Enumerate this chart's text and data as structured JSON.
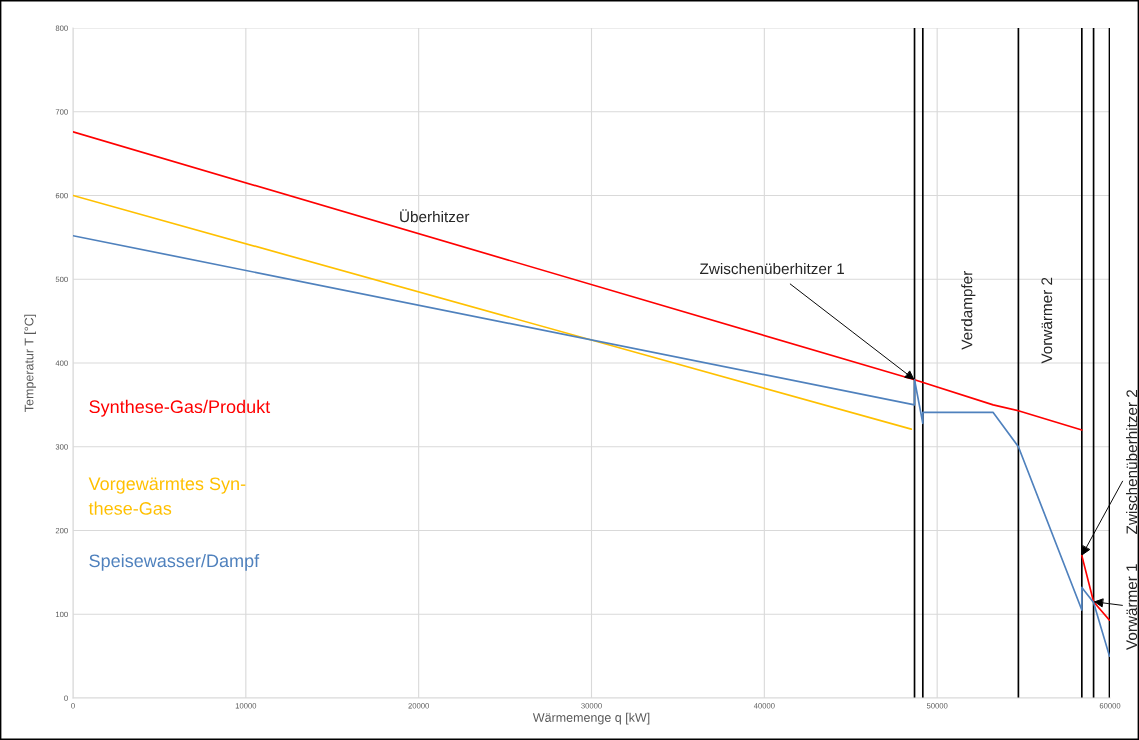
{
  "chart_data": {
    "type": "line",
    "xlabel": "Wärmemenge q [kW]",
    "ylabel": "Temperatur T [°C]",
    "xlim": [
      0,
      60000
    ],
    "xticks": [
      0,
      10000,
      20000,
      30000,
      40000,
      50000,
      60000
    ],
    "ylim": [
      0,
      800
    ],
    "yticks": [
      0,
      100,
      200,
      300,
      400,
      500,
      600,
      700,
      800
    ],
    "grid": true,
    "marker": "none",
    "line_style": "solid",
    "series": [
      {
        "name": "Synthese-Gas/Produkt",
        "color": "#ff0000",
        "x": [
          0,
          48690,
          53240,
          54700,
          58370,
          null,
          58370,
          59050,
          59970
        ],
        "values": [
          676,
          380,
          350,
          343,
          320,
          null,
          170,
          115,
          93
        ]
      },
      {
        "name": "Vorgewärmtes Syn-\nthese-Gas",
        "color": "#ffc000",
        "x": [
          0,
          48500
        ],
        "values": [
          600,
          321
        ]
      },
      {
        "name": "Speisewasser/Dampf",
        "color": "#4f81bd",
        "x": [
          0,
          48690,
          48690,
          49170,
          49170,
          53240,
          54700,
          58370,
          58370,
          59050,
          59970
        ],
        "values": [
          552,
          350,
          380,
          328,
          341,
          341,
          300,
          105,
          132,
          114,
          50
        ]
      }
    ],
    "ref_lines": [
      {
        "axis": "x",
        "value": 48690,
        "color": "#000000"
      },
      {
        "axis": "x",
        "value": 49170,
        "color": "#000000"
      },
      {
        "axis": "x",
        "value": 54700,
        "color": "#000000"
      },
      {
        "axis": "x",
        "value": 58370,
        "color": "#000000"
      },
      {
        "axis": "x",
        "value": 59050,
        "color": "#000000"
      },
      {
        "axis": "x",
        "value": 59970,
        "color": "#000000"
      }
    ],
    "annotations": [
      "Überhitzer",
      {
        "text": "Zwischenüberhitzer 1",
        "x": 48690,
        "y": 380
      },
      "Verdampfer",
      "Vorwärmer 2",
      {
        "text": "Zwischenüberhitzer 2",
        "x": 58370,
        "y": 170
      },
      {
        "text": "Vorwärmer 1",
        "x": 59050,
        "y": 115
      }
    ]
  }
}
